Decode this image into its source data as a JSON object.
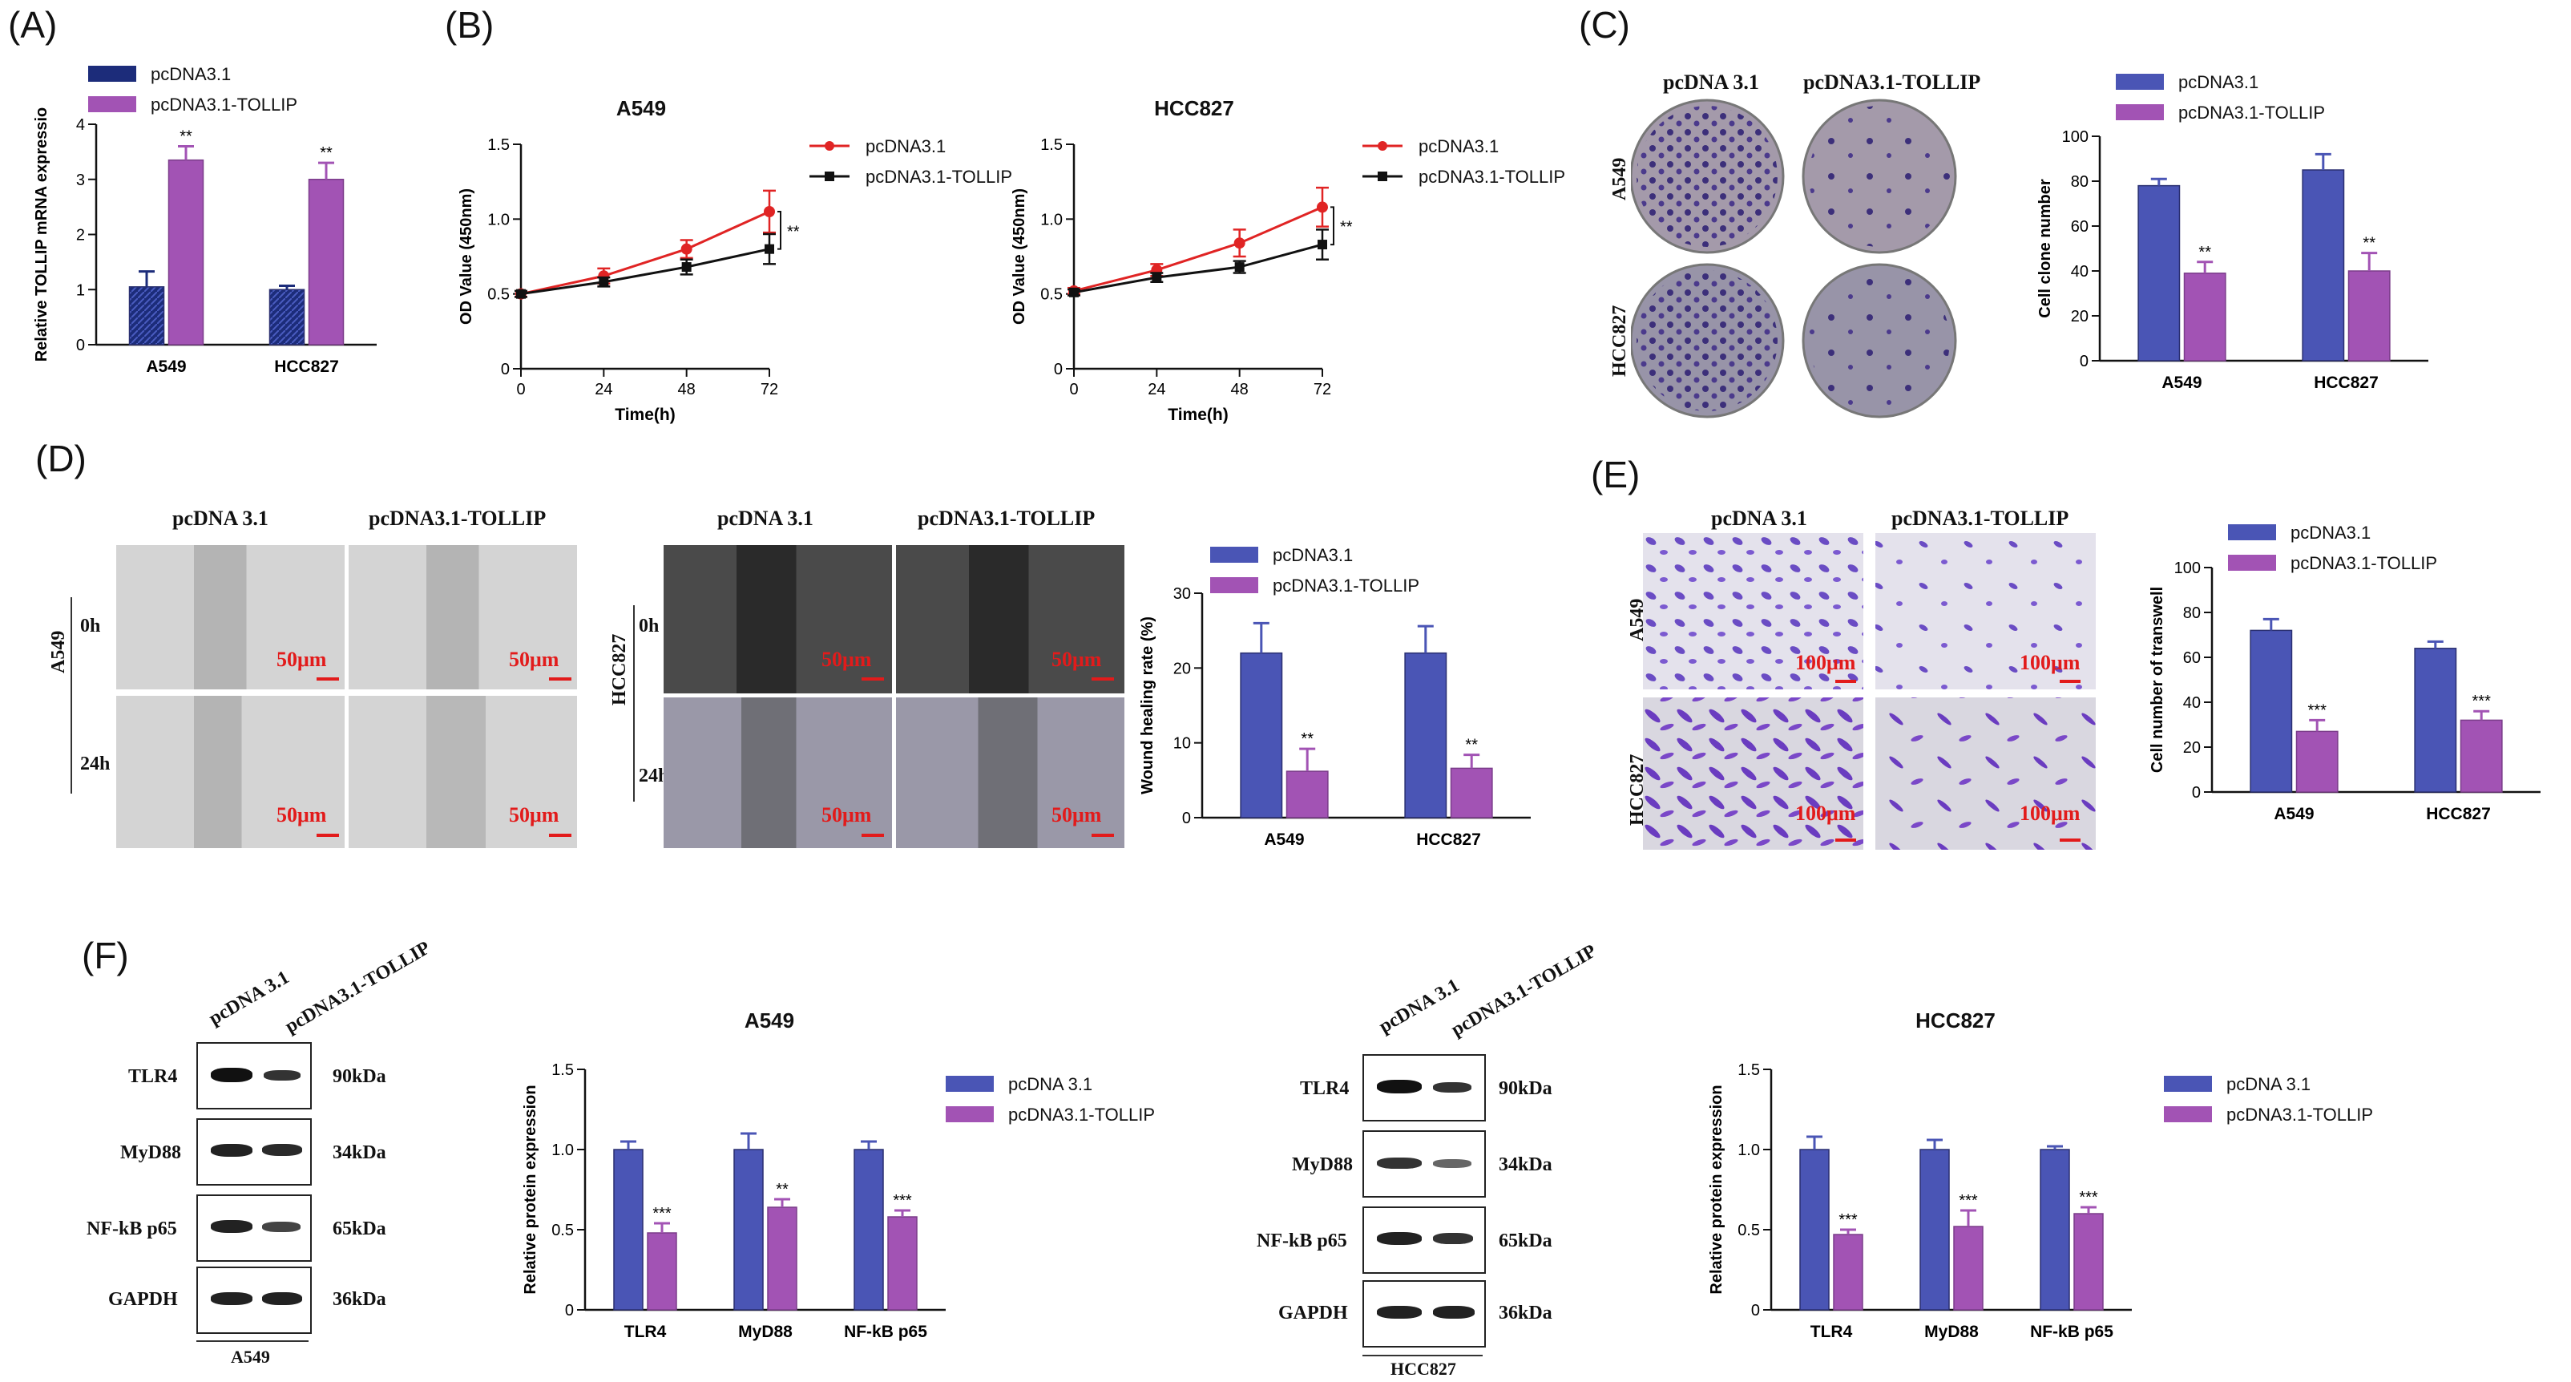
{
  "panels": {
    "A": "(A)",
    "B": "(B)",
    "C": "(C)",
    "D": "(D)",
    "E": "(E)",
    "F": "(F)"
  },
  "colors": {
    "blue": "#4a55b5",
    "purple": "#a253b4",
    "navy": "#1c2c7a",
    "red": "#e02424",
    "black": "#111111",
    "scale_red": "#e21b1b"
  },
  "imaging": {
    "C": {
      "col1": "pcDNA 3.1",
      "col2": "pcDNA3.1-TOLLIP",
      "row1": "A549",
      "row2": "HCC827"
    },
    "D": {
      "col1": "pcDNA 3.1",
      "col2": "pcDNA3.1-TOLLIP",
      "t0": "0h",
      "t24": "24h",
      "cell1": "A549",
      "cell2": "HCC827",
      "scale": "50μm"
    },
    "E": {
      "col1": "pcDNA 3.1",
      "col2": "pcDNA3.1-TOLLIP",
      "row1": "A549",
      "row2": "HCC827",
      "scale": "100μm"
    }
  },
  "western": {
    "lanes": [
      "pcDNA 3.1",
      "pcDNA3.1-TOLLIP"
    ],
    "proteins": [
      "TLR4",
      "MyD88",
      "NF-kB p65",
      "GAPDH"
    ],
    "sizes": [
      "90kDa",
      "34kDa",
      "65kDa",
      "36kDa"
    ],
    "cell_A": "A549",
    "cell_B": "HCC827"
  },
  "chart_data": [
    {
      "id": "A",
      "type": "bar",
      "title": "",
      "categories": [
        "A549",
        "HCC827"
      ],
      "series": [
        {
          "name": "pcDNA3.1",
          "values": [
            1.05,
            1.0
          ],
          "errors": [
            0.28,
            0.07
          ]
        },
        {
          "name": "pcDNA3.1-TOLLIP",
          "values": [
            3.35,
            3.0
          ],
          "errors": [
            0.25,
            0.3
          ]
        }
      ],
      "significance": [
        [
          "",
          ""
        ],
        [
          "**",
          "**"
        ]
      ],
      "ylabel": "Relative TOLLIP mRNA expressio",
      "ylim": [
        0,
        4
      ],
      "yticks": [
        0,
        1,
        2,
        3,
        4
      ],
      "legend": "top-left"
    },
    {
      "id": "B1",
      "type": "line",
      "title": "A549",
      "x": [
        0,
        24,
        48,
        72
      ],
      "series": [
        {
          "name": "pcDNA3.1",
          "values": [
            0.5,
            0.62,
            0.8,
            1.05
          ],
          "errors": [
            0.02,
            0.05,
            0.06,
            0.14
          ]
        },
        {
          "name": "pcDNA3.1-TOLLIP",
          "values": [
            0.5,
            0.58,
            0.68,
            0.8
          ],
          "errors": [
            0.02,
            0.03,
            0.05,
            0.1
          ]
        }
      ],
      "significance": "**",
      "xlabel": "Time(h)",
      "ylabel": "OD Value (450nm)",
      "ylim": [
        0,
        1.5
      ],
      "yticks": [
        0,
        0.5,
        1.0,
        1.5
      ],
      "xticks": [
        0,
        24,
        48,
        72
      ],
      "legend": "top-right"
    },
    {
      "id": "B2",
      "type": "line",
      "title": "HCC827",
      "x": [
        0,
        24,
        48,
        72
      ],
      "series": [
        {
          "name": "pcDNA3.1",
          "values": [
            0.52,
            0.66,
            0.84,
            1.08
          ],
          "errors": [
            0.02,
            0.04,
            0.09,
            0.13
          ]
        },
        {
          "name": "pcDNA3.1-TOLLIP",
          "values": [
            0.51,
            0.61,
            0.68,
            0.83
          ],
          "errors": [
            0.02,
            0.03,
            0.04,
            0.1
          ]
        }
      ],
      "significance": "**",
      "xlabel": "Time(h)",
      "ylabel": "OD Value (450nm)",
      "ylim": [
        0,
        1.5
      ],
      "yticks": [
        0,
        0.5,
        1.0,
        1.5
      ],
      "xticks": [
        0,
        24,
        48,
        72
      ],
      "legend": "top-right"
    },
    {
      "id": "C",
      "type": "bar",
      "title": "",
      "categories": [
        "A549",
        "HCC827"
      ],
      "series": [
        {
          "name": "pcDNA3.1",
          "values": [
            78,
            85
          ],
          "errors": [
            3,
            7
          ]
        },
        {
          "name": "pcDNA3.1-TOLLIP",
          "values": [
            39,
            40
          ],
          "errors": [
            5,
            8
          ]
        }
      ],
      "significance": [
        [
          "",
          ""
        ],
        [
          "**",
          "**"
        ]
      ],
      "ylabel": "Cell clone number",
      "ylim": [
        0,
        100
      ],
      "yticks": [
        0,
        20,
        40,
        60,
        80,
        100
      ],
      "legend": "top-right"
    },
    {
      "id": "D",
      "type": "bar",
      "title": "",
      "categories": [
        "A549",
        "HCC827"
      ],
      "series": [
        {
          "name": "pcDNA3.1",
          "values": [
            22,
            22
          ],
          "errors": [
            4,
            3.6
          ]
        },
        {
          "name": "pcDNA3.1-TOLLIP",
          "values": [
            6.2,
            6.6
          ],
          "errors": [
            3,
            1.8
          ]
        }
      ],
      "significance": [
        [
          "",
          ""
        ],
        [
          "**",
          "**"
        ]
      ],
      "ylabel": "Wound healing rate (%)",
      "ylim": [
        0,
        30
      ],
      "yticks": [
        0,
        10,
        20,
        30
      ],
      "legend": "top-right"
    },
    {
      "id": "E",
      "type": "bar",
      "title": "",
      "categories": [
        "A549",
        "HCC827"
      ],
      "series": [
        {
          "name": "pcDNA3.1",
          "values": [
            72,
            64
          ],
          "errors": [
            5,
            3
          ]
        },
        {
          "name": "pcDNA3.1-TOLLIP",
          "values": [
            27,
            32
          ],
          "errors": [
            5,
            4
          ]
        }
      ],
      "significance": [
        [
          "",
          ""
        ],
        [
          "***",
          "***"
        ]
      ],
      "ylabel": "Cell number of transwell",
      "ylim": [
        0,
        100
      ],
      "yticks": [
        0,
        20,
        40,
        60,
        80,
        100
      ],
      "legend": "top-right"
    },
    {
      "id": "F1",
      "type": "bar",
      "title": "A549",
      "categories": [
        "TLR4",
        "MyD88",
        "NF-kB p65"
      ],
      "series": [
        {
          "name": "pcDNA 3.1",
          "values": [
            1.0,
            1.0,
            1.0
          ],
          "errors": [
            0.05,
            0.1,
            0.05
          ]
        },
        {
          "name": "pcDNA3.1-TOLLIP",
          "values": [
            0.48,
            0.64,
            0.58
          ],
          "errors": [
            0.06,
            0.05,
            0.04
          ]
        }
      ],
      "significance": [
        [
          "",
          "",
          ""
        ],
        [
          "***",
          "**",
          "***"
        ]
      ],
      "ylabel": "Relative  protein  expression",
      "ylim": [
        0,
        1.5
      ],
      "yticks": [
        0,
        0.5,
        1.0,
        1.5
      ],
      "legend": "top-right"
    },
    {
      "id": "F2",
      "type": "bar",
      "title": "HCC827",
      "categories": [
        "TLR4",
        "MyD88",
        "NF-kB p65"
      ],
      "series": [
        {
          "name": "pcDNA 3.1",
          "values": [
            1.0,
            1.0,
            1.0
          ],
          "errors": [
            0.08,
            0.06,
            0.02
          ]
        },
        {
          "name": "pcDNA3.1-TOLLIP",
          "values": [
            0.47,
            0.52,
            0.6
          ],
          "errors": [
            0.03,
            0.1,
            0.04
          ]
        }
      ],
      "significance": [
        [
          "",
          "",
          ""
        ],
        [
          "***",
          "***",
          "***"
        ]
      ],
      "ylabel": "Relative  protein  expression",
      "ylim": [
        0,
        1.5
      ],
      "yticks": [
        0,
        0.5,
        1.0,
        1.5
      ],
      "legend": "top-right"
    }
  ]
}
